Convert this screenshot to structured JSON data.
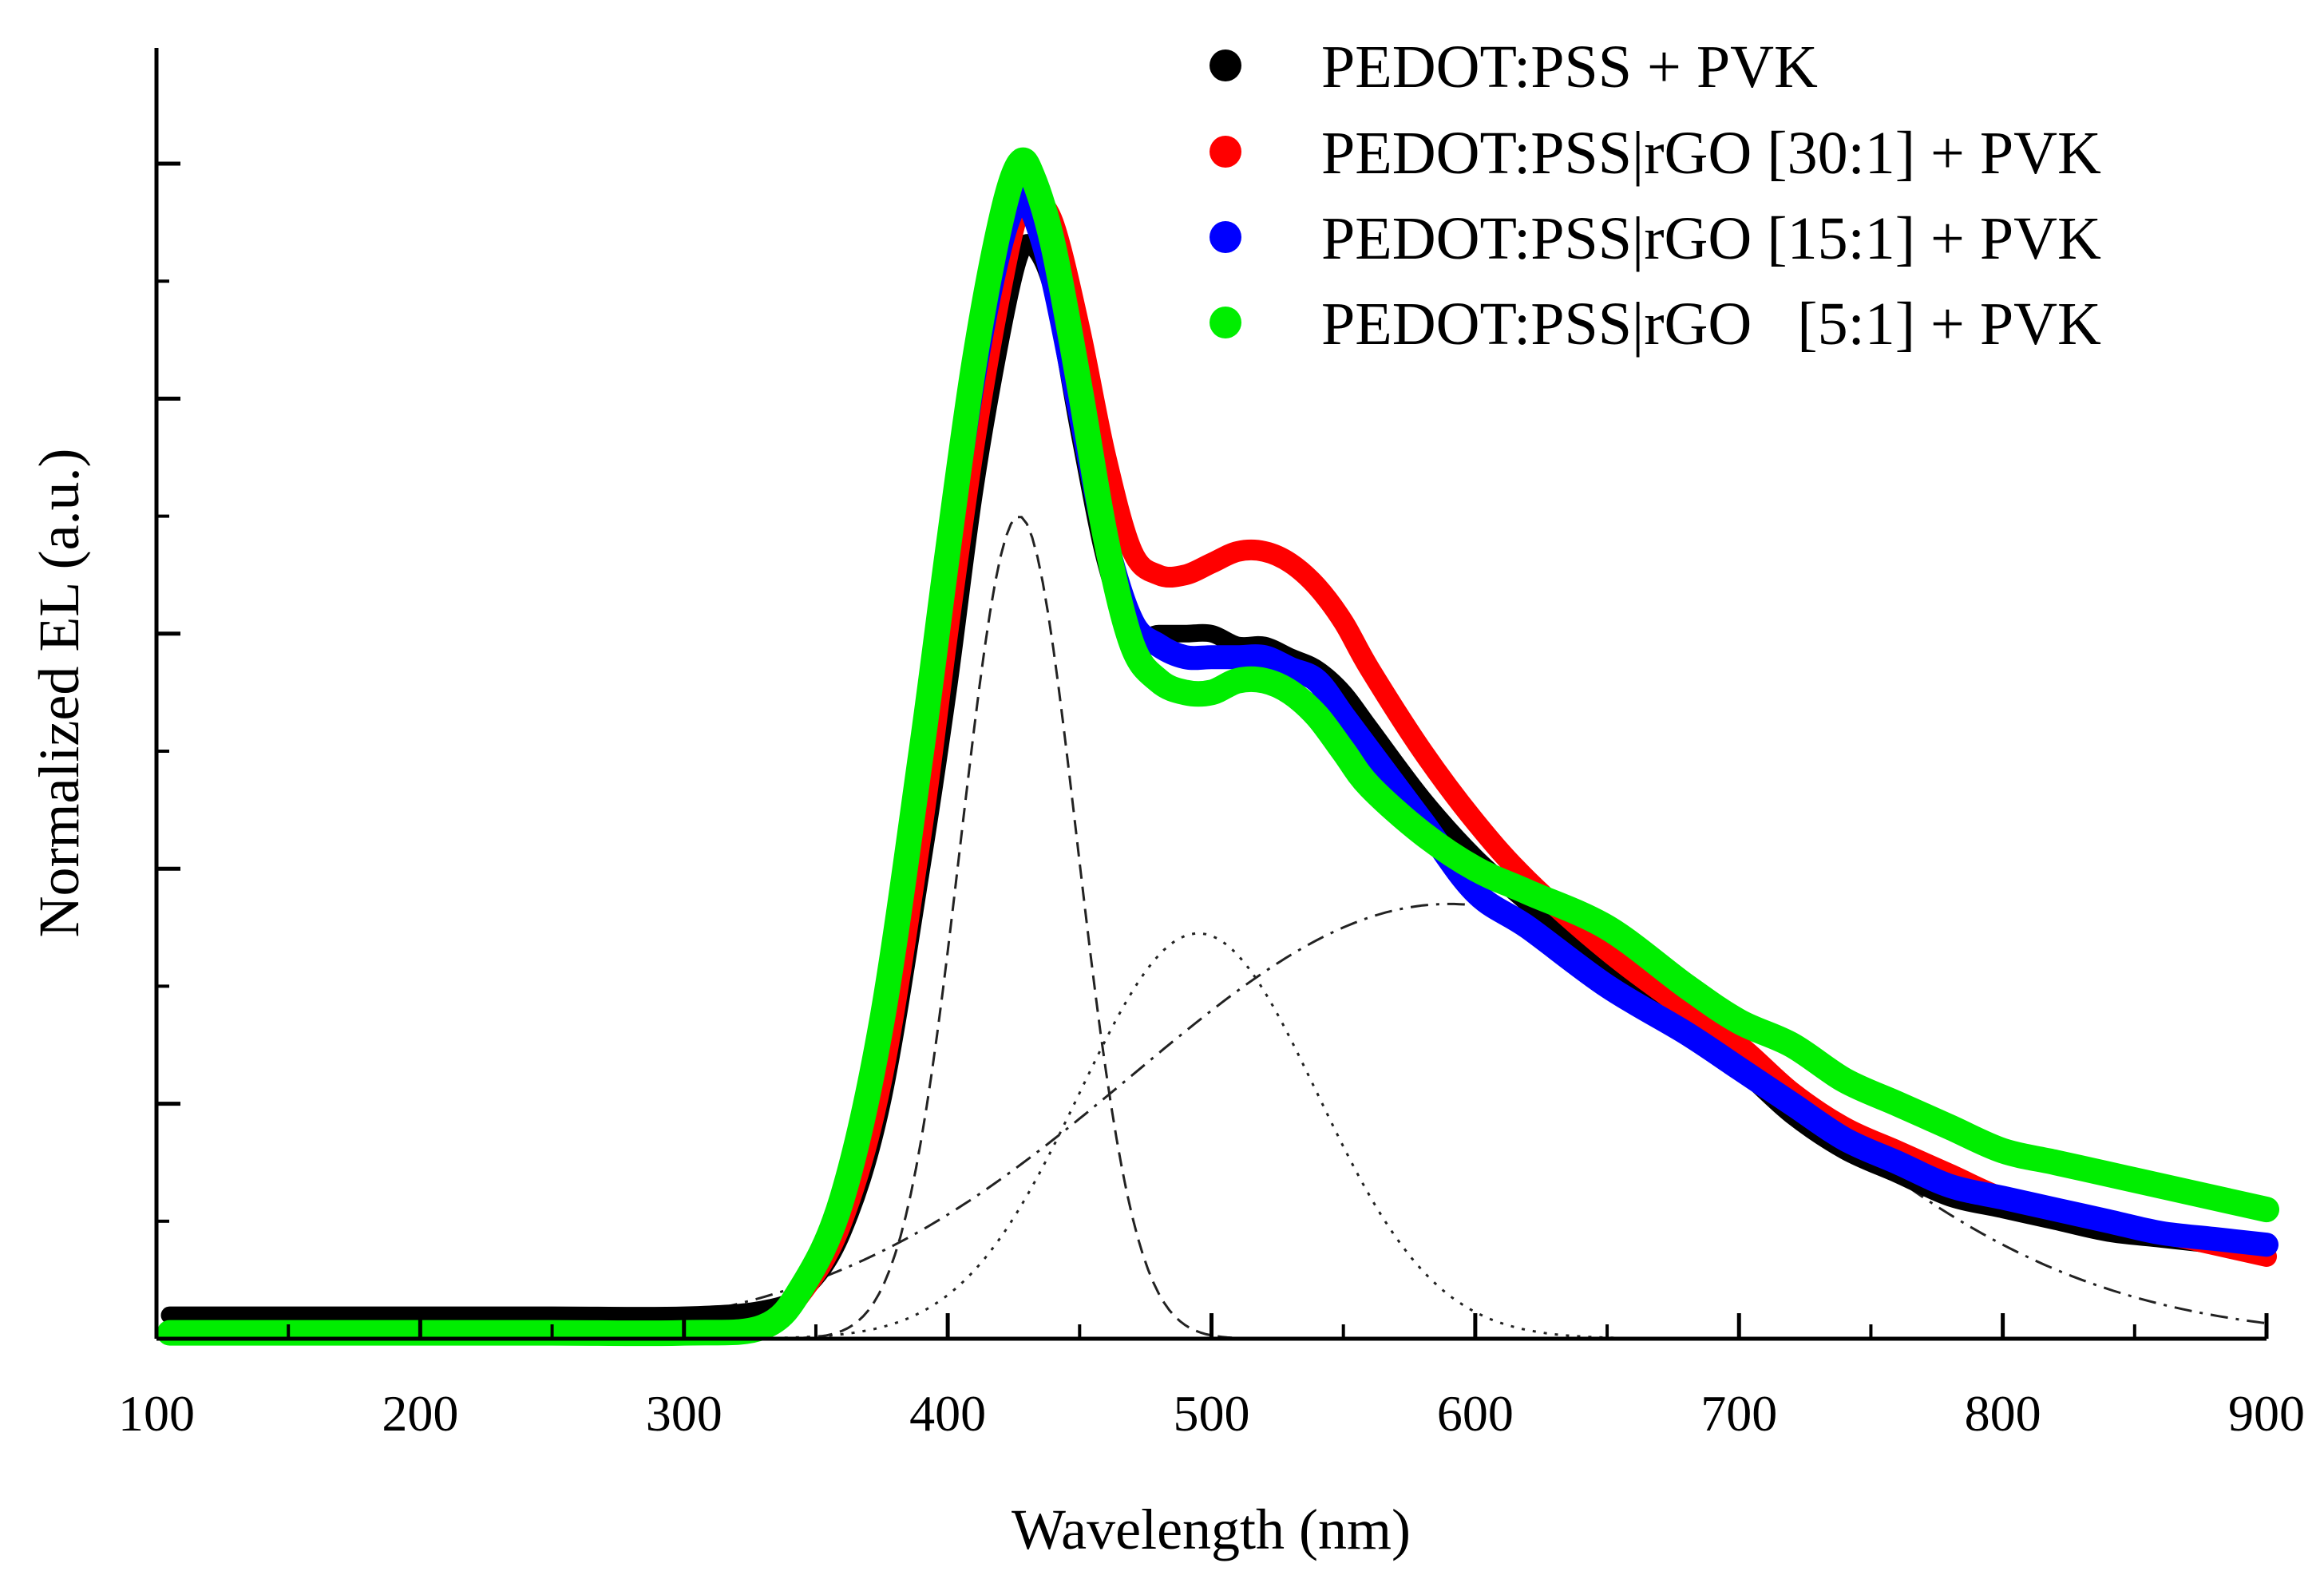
{
  "chart_data": {
    "type": "line",
    "title": "",
    "xlabel": "Wavelength (nm)",
    "ylabel": "Normalized EL (a.u.)",
    "xlim": [
      100,
      900
    ],
    "ylim": [
      0,
      1.1
    ],
    "x_ticks": [
      100,
      200,
      300,
      400,
      500,
      600,
      700,
      800,
      900
    ],
    "x_tick_labels": [
      "100",
      "200",
      "300",
      "400",
      "500",
      "600",
      "700",
      "800",
      "900"
    ],
    "y_tick_labels_shown": false,
    "grid": false,
    "legend_position": "top-right",
    "series": [
      {
        "name": "PEDOT:PSS + PVK",
        "legend_label": "PEDOT:PSS + PVK",
        "color": "#000000",
        "marker": "filled-circle",
        "x": [
          105,
          150,
          200,
          250,
          300,
          330,
          345,
          360,
          375,
          390,
          400,
          410,
          420,
          427,
          432,
          440,
          450,
          460,
          470,
          480,
          490,
          500,
          510,
          520,
          530,
          540,
          550,
          560,
          580,
          600,
          620,
          650,
          680,
          700,
          720,
          740,
          760,
          780,
          800,
          820,
          840,
          860,
          880,
          900
        ],
        "y": [
          0.02,
          0.02,
          0.02,
          0.02,
          0.02,
          0.025,
          0.04,
          0.09,
          0.2,
          0.4,
          0.55,
          0.72,
          0.85,
          0.92,
          0.93,
          0.89,
          0.77,
          0.66,
          0.6,
          0.6,
          0.6,
          0.6,
          0.59,
          0.59,
          0.58,
          0.57,
          0.55,
          0.52,
          0.46,
          0.41,
          0.37,
          0.31,
          0.26,
          0.23,
          0.19,
          0.16,
          0.14,
          0.12,
          0.11,
          0.1,
          0.09,
          0.085,
          0.08,
          0.075
        ]
      },
      {
        "name": "PEDOT:PSS|rGO [30:1] + PVK",
        "legend_label": "PEDOT:PSS|rGO [30:1] + PVK",
        "color": "#ff0000",
        "marker": "filled-circle",
        "x": [
          105,
          150,
          200,
          250,
          300,
          330,
          345,
          360,
          375,
          390,
          400,
          410,
          420,
          427,
          432,
          440,
          450,
          460,
          470,
          480,
          490,
          500,
          510,
          520,
          530,
          540,
          550,
          560,
          580,
          600,
          620,
          650,
          680,
          700,
          720,
          740,
          760,
          780,
          800,
          820,
          840,
          860,
          880,
          900
        ],
        "y": [
          0.005,
          0.005,
          0.005,
          0.005,
          0.005,
          0.01,
          0.04,
          0.1,
          0.22,
          0.43,
          0.6,
          0.76,
          0.89,
          0.96,
          0.97,
          0.95,
          0.86,
          0.75,
          0.67,
          0.65,
          0.65,
          0.66,
          0.67,
          0.67,
          0.66,
          0.64,
          0.61,
          0.57,
          0.5,
          0.44,
          0.39,
          0.33,
          0.28,
          0.25,
          0.21,
          0.18,
          0.16,
          0.14,
          0.12,
          0.11,
          0.1,
          0.09,
          0.08,
          0.07
        ]
      },
      {
        "name": "PEDOT:PSS|rGO [15:1] + PVK",
        "legend_label": "PEDOT:PSS|rGO [15:1] + PVK",
        "color": "#0000ff",
        "marker": "filled-circle",
        "x": [
          105,
          150,
          200,
          250,
          300,
          330,
          345,
          360,
          375,
          390,
          400,
          410,
          420,
          427,
          432,
          440,
          450,
          460,
          470,
          480,
          490,
          500,
          510,
          520,
          530,
          540,
          550,
          560,
          580,
          600,
          620,
          650,
          680,
          700,
          720,
          740,
          760,
          780,
          800,
          820,
          840,
          860,
          880,
          900
        ],
        "y": [
          0.005,
          0.005,
          0.005,
          0.005,
          0.005,
          0.01,
          0.045,
          0.12,
          0.27,
          0.5,
          0.67,
          0.82,
          0.93,
          0.97,
          0.96,
          0.9,
          0.79,
          0.68,
          0.61,
          0.59,
          0.58,
          0.58,
          0.58,
          0.58,
          0.57,
          0.56,
          0.53,
          0.5,
          0.44,
          0.38,
          0.35,
          0.3,
          0.26,
          0.23,
          0.2,
          0.17,
          0.15,
          0.13,
          0.12,
          0.11,
          0.1,
          0.09,
          0.085,
          0.08
        ]
      },
      {
        "name": "PEDOT:PSS|rGO [5:1] + PVK",
        "legend_label": "PEDOT:PSS|rGO   [5:1] + PVK",
        "color": "#00ee00",
        "marker": "filled-circle",
        "x": [
          105,
          150,
          200,
          250,
          300,
          330,
          345,
          360,
          375,
          390,
          400,
          410,
          420,
          427,
          432,
          440,
          450,
          460,
          470,
          480,
          490,
          500,
          510,
          520,
          530,
          540,
          550,
          560,
          580,
          600,
          620,
          650,
          680,
          700,
          720,
          740,
          760,
          780,
          800,
          820,
          840,
          860,
          880,
          900
        ],
        "y": [
          0.005,
          0.005,
          0.005,
          0.005,
          0.005,
          0.01,
          0.045,
          0.12,
          0.27,
          0.5,
          0.67,
          0.83,
          0.95,
          1.0,
          0.99,
          0.93,
          0.81,
          0.68,
          0.59,
          0.56,
          0.55,
          0.55,
          0.56,
          0.56,
          0.55,
          0.53,
          0.5,
          0.47,
          0.43,
          0.4,
          0.38,
          0.35,
          0.3,
          0.27,
          0.25,
          0.22,
          0.2,
          0.18,
          0.16,
          0.15,
          0.14,
          0.13,
          0.12,
          0.11
        ]
      }
    ],
    "fit_components": [
      {
        "name": "gaussian-1",
        "style": "dashed",
        "center": 427,
        "sigma": 22,
        "amplitude": 0.7
      },
      {
        "name": "gaussian-2",
        "style": "dotted",
        "center": 495,
        "sigma": 45,
        "amplitude": 0.345
      },
      {
        "name": "gaussian-3",
        "style": "dash-dot",
        "center": 590,
        "sigma": 120,
        "amplitude": 0.37
      }
    ]
  }
}
